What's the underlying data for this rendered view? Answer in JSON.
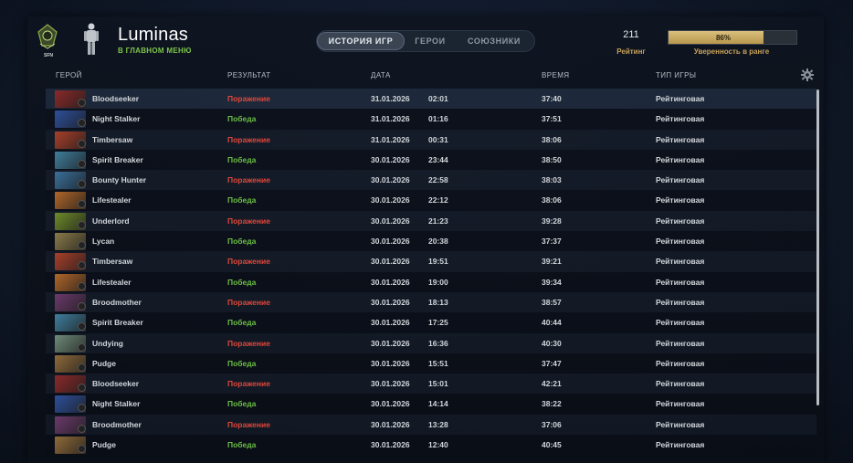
{
  "header": {
    "rank_badge_text": "SFN",
    "player_name": "Luminas",
    "player_status": "В ГЛАВНОМ МЕНЮ",
    "tabs": [
      {
        "label": "ИСТОРИЯ ИГР",
        "active": true
      },
      {
        "label": "ГЕРОИ",
        "active": false
      },
      {
        "label": "СОЮЗНИКИ",
        "active": false
      }
    ],
    "rating_value": "211",
    "rating_label": "Рейтинг",
    "confidence_percent": 86,
    "confidence_text": "86%",
    "confidence_label": "Уверенность в ранге"
  },
  "table": {
    "columns": [
      "ГЕРОЙ",
      "РЕЗУЛЬТАТ",
      "ДАТА",
      "ВРЕМЯ",
      "ТИП ИГРЫ"
    ],
    "rows": [
      {
        "hero": "Bloodseeker",
        "result": "Поражение",
        "win": false,
        "date": "31.01.2026",
        "time": "02:01",
        "duration": "37:40",
        "type": "Рейтинговая",
        "color": "#8a2a2a"
      },
      {
        "hero": "Night Stalker",
        "result": "Победа",
        "win": true,
        "date": "31.01.2026",
        "time": "01:16",
        "duration": "37:51",
        "type": "Рейтинговая",
        "color": "#2d4f9a"
      },
      {
        "hero": "Timbersaw",
        "result": "Поражение",
        "win": false,
        "date": "31.01.2026",
        "time": "00:31",
        "duration": "38:06",
        "type": "Рейтинговая",
        "color": "#a8402a"
      },
      {
        "hero": "Spirit Breaker",
        "result": "Победа",
        "win": true,
        "date": "30.01.2026",
        "time": "23:44",
        "duration": "38:50",
        "type": "Рейтинговая",
        "color": "#3f7d9c"
      },
      {
        "hero": "Bounty Hunter",
        "result": "Поражение",
        "win": false,
        "date": "30.01.2026",
        "time": "22:58",
        "duration": "38:03",
        "type": "Рейтинговая",
        "color": "#3a6f9a"
      },
      {
        "hero": "Lifestealer",
        "result": "Победа",
        "win": true,
        "date": "30.01.2026",
        "time": "22:12",
        "duration": "38:06",
        "type": "Рейтинговая",
        "color": "#b0662a"
      },
      {
        "hero": "Underlord",
        "result": "Поражение",
        "win": false,
        "date": "30.01.2026",
        "time": "21:23",
        "duration": "39:28",
        "type": "Рейтинговая",
        "color": "#6e8a2a"
      },
      {
        "hero": "Lycan",
        "result": "Победа",
        "win": true,
        "date": "30.01.2026",
        "time": "20:38",
        "duration": "37:37",
        "type": "Рейтинговая",
        "color": "#8a7a4a"
      },
      {
        "hero": "Timbersaw",
        "result": "Поражение",
        "win": false,
        "date": "30.01.2026",
        "time": "19:51",
        "duration": "39:21",
        "type": "Рейтинговая",
        "color": "#a8402a"
      },
      {
        "hero": "Lifestealer",
        "result": "Победа",
        "win": true,
        "date": "30.01.2026",
        "time": "19:00",
        "duration": "39:34",
        "type": "Рейтинговая",
        "color": "#b0662a"
      },
      {
        "hero": "Broodmother",
        "result": "Поражение",
        "win": false,
        "date": "30.01.2026",
        "time": "18:13",
        "duration": "38:57",
        "type": "Рейтинговая",
        "color": "#6a3a6a"
      },
      {
        "hero": "Spirit Breaker",
        "result": "Победа",
        "win": true,
        "date": "30.01.2026",
        "time": "17:25",
        "duration": "40:44",
        "type": "Рейтинговая",
        "color": "#3f7d9c"
      },
      {
        "hero": "Undying",
        "result": "Поражение",
        "win": false,
        "date": "30.01.2026",
        "time": "16:36",
        "duration": "40:30",
        "type": "Рейтинговая",
        "color": "#6f8a78"
      },
      {
        "hero": "Pudge",
        "result": "Победа",
        "win": true,
        "date": "30.01.2026",
        "time": "15:51",
        "duration": "37:47",
        "type": "Рейтинговая",
        "color": "#8f6a3a"
      },
      {
        "hero": "Bloodseeker",
        "result": "Поражение",
        "win": false,
        "date": "30.01.2026",
        "time": "15:01",
        "duration": "42:21",
        "type": "Рейтинговая",
        "color": "#8a2a2a"
      },
      {
        "hero": "Night Stalker",
        "result": "Победа",
        "win": true,
        "date": "30.01.2026",
        "time": "14:14",
        "duration": "38:22",
        "type": "Рейтинговая",
        "color": "#2d4f9a"
      },
      {
        "hero": "Broodmother",
        "result": "Поражение",
        "win": false,
        "date": "30.01.2026",
        "time": "13:28",
        "duration": "37:06",
        "type": "Рейтинговая",
        "color": "#6a3a6a"
      },
      {
        "hero": "Pudge",
        "result": "Победа",
        "win": true,
        "date": "30.01.2026",
        "time": "12:40",
        "duration": "40:45",
        "type": "Рейтинговая",
        "color": "#8f6a3a"
      }
    ]
  }
}
